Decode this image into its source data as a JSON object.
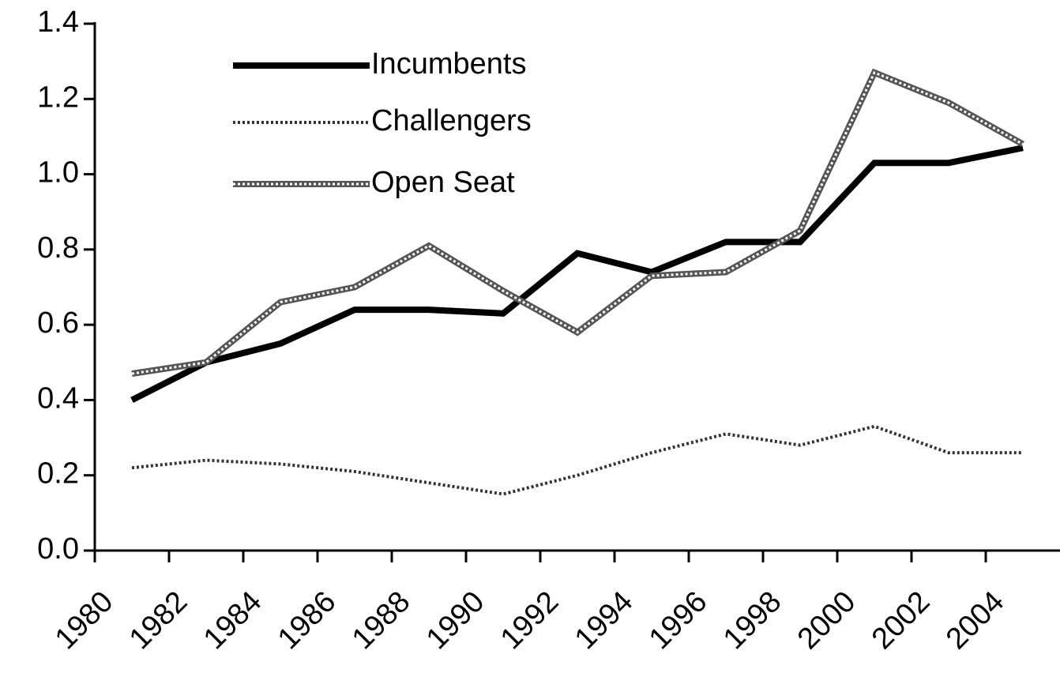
{
  "chart_data": {
    "type": "line",
    "categories": [
      "1980",
      "1982",
      "1984",
      "1986",
      "1988",
      "1990",
      "1992",
      "1994",
      "1996",
      "1998",
      "2000",
      "2002",
      "2004"
    ],
    "series": [
      {
        "name": "Incumbents",
        "color": "#000000",
        "values": [
          0.4,
          0.5,
          0.55,
          0.64,
          0.64,
          0.63,
          0.79,
          0.74,
          0.82,
          0.82,
          1.03,
          1.03,
          1.07
        ]
      },
      {
        "name": "Challengers",
        "color": "#333333",
        "values": [
          0.22,
          0.24,
          0.23,
          0.21,
          0.18,
          0.15,
          0.2,
          0.26,
          0.31,
          0.28,
          0.33,
          0.26,
          0.26
        ]
      },
      {
        "name": "Open Seat",
        "color": "#555555",
        "values": [
          0.47,
          0.5,
          0.66,
          0.7,
          0.81,
          0.69,
          0.58,
          0.73,
          0.74,
          0.85,
          1.27,
          1.19,
          1.08
        ]
      }
    ],
    "ylim": [
      0,
      1.4
    ],
    "yticks": [
      {
        "value": 0,
        "label": "0.0"
      },
      {
        "value": 0.2,
        "label": "0.2"
      },
      {
        "value": 0.4,
        "label": "0.4"
      },
      {
        "value": 0.6,
        "label": "0.6"
      },
      {
        "value": 0.8,
        "label": "0.8"
      },
      {
        "value": 1.0,
        "label": "1.0"
      },
      {
        "value": 1.2,
        "label": "1.2"
      },
      {
        "value": 1.4,
        "label": "1.4"
      }
    ],
    "grid": false
  }
}
